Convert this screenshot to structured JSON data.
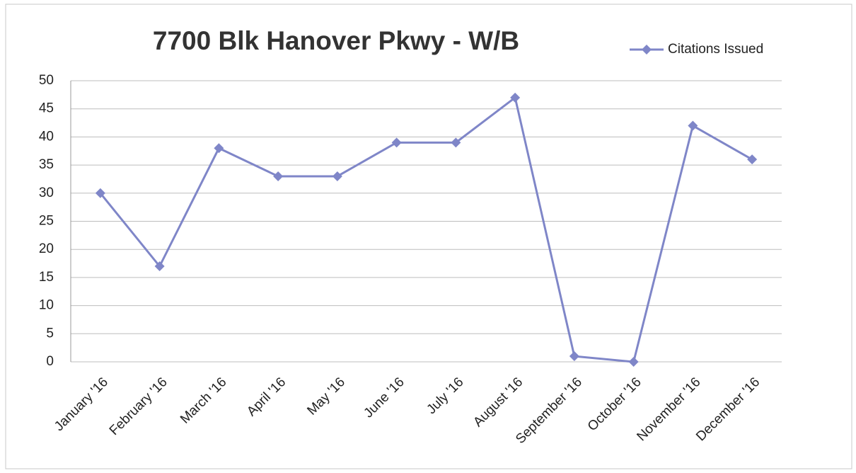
{
  "chart_data": {
    "type": "line",
    "title": "7700 Blk Hanover Pkwy - W/B",
    "categories": [
      "January '16",
      "February '16",
      "March '16",
      "April '16",
      "May '16",
      "June '16",
      "July '16",
      "August '16",
      "September '16",
      "October '16",
      "November '16",
      "December '16"
    ],
    "series": [
      {
        "name": "Citations Issued",
        "color": "#7f86c8",
        "values": [
          30,
          17,
          38,
          33,
          33,
          39,
          39,
          47,
          1,
          0,
          42,
          36
        ]
      }
    ],
    "ylim": [
      0,
      50
    ],
    "yticks": [
      0,
      5,
      10,
      15,
      20,
      25,
      30,
      35,
      40,
      45,
      50
    ],
    "grid": true,
    "legend": "top-right"
  }
}
